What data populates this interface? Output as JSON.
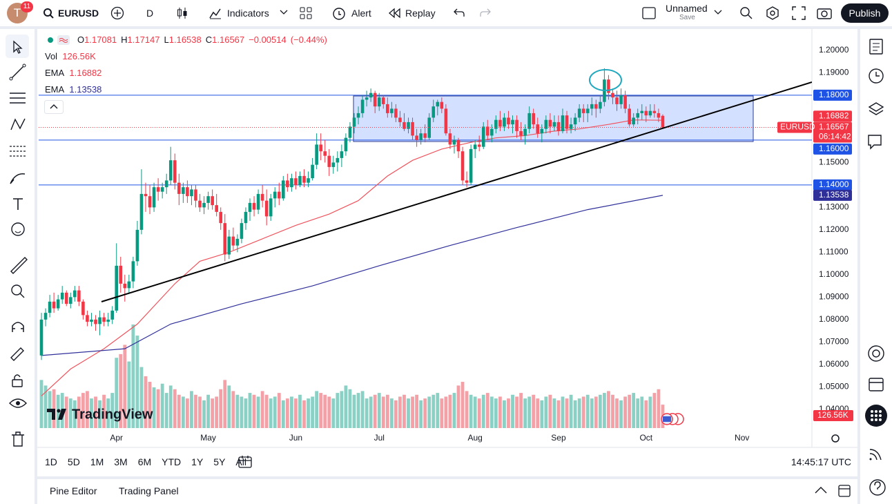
{
  "toolbar": {
    "avatar": "T",
    "badge": "11",
    "symbol": "EURUSD",
    "interval": "D",
    "indicators": "Indicators",
    "alert": "Alert",
    "replay": "Replay",
    "layout_name": "Unnamed",
    "save": "Save",
    "publish": "Publish"
  },
  "legend": {
    "ohlc_labels": [
      "O",
      "H",
      "L",
      "C"
    ],
    "change": {
      "value": -0.00514,
      "label": "−0.00514"
    },
    "change_pct": {
      "value": -0.44,
      "label": "(−0.44%)"
    }
  },
  "chart": {
    "type": "candlestick",
    "symbol_label": "EURUSD",
    "countdown": "06:14:42",
    "up_color": "#089981",
    "down_color": "#f23645",
    "ylim": [
      1.0298,
      1.2089
    ],
    "yticks": [
      {
        "value": 1.2,
        "label": "1.20000"
      },
      {
        "value": 1.19,
        "label": "1.19000"
      },
      {
        "value": 1.18,
        "label": "1.18000"
      },
      {
        "value": 1.17,
        "label": "1.17000"
      },
      {
        "value": 1.16,
        "label": "1.16000"
      },
      {
        "value": 1.15,
        "label": "1.15000"
      },
      {
        "value": 1.14,
        "label": "1.14000"
      },
      {
        "value": 1.13,
        "label": "1.13000"
      },
      {
        "value": 1.12,
        "label": "1.12000"
      },
      {
        "value": 1.11,
        "label": "1.11000"
      },
      {
        "value": 1.1,
        "label": "1.10000"
      },
      {
        "value": 1.09,
        "label": "1.09000"
      },
      {
        "value": 1.08,
        "label": "1.08000"
      },
      {
        "value": 1.07,
        "label": "1.07000"
      },
      {
        "value": 1.06,
        "label": "1.06000"
      },
      {
        "value": 1.05,
        "label": "1.05000"
      },
      {
        "value": 1.04,
        "label": "1.04000"
      }
    ],
    "xticks": [
      {
        "value": 18,
        "label": "Apr"
      },
      {
        "value": 40,
        "label": "May"
      },
      {
        "value": 61,
        "label": "Jun"
      },
      {
        "value": 81,
        "label": "Jul"
      },
      {
        "value": 104,
        "label": "Aug"
      },
      {
        "value": 124,
        "label": "Sep"
      },
      {
        "value": 145,
        "label": "Oct"
      },
      {
        "value": 168,
        "label": "Nov"
      }
    ],
    "grid": false,
    "candles": [
      [
        1.064,
        1.083,
        1.062,
        1.08
      ],
      [
        1.08,
        1.085,
        1.077,
        1.083
      ],
      [
        1.083,
        1.091,
        1.081,
        1.088
      ],
      [
        1.088,
        1.092,
        1.083,
        1.085
      ],
      [
        1.085,
        1.091,
        1.084,
        1.089
      ],
      [
        1.089,
        1.095,
        1.087,
        1.092
      ],
      [
        1.092,
        1.093,
        1.086,
        1.087
      ],
      [
        1.087,
        1.092,
        1.085,
        1.09
      ],
      [
        1.09,
        1.095,
        1.088,
        1.093
      ],
      [
        1.093,
        1.095,
        1.086,
        1.088
      ],
      [
        1.088,
        1.089,
        1.08,
        1.082
      ],
      [
        1.082,
        1.084,
        1.077,
        1.079
      ],
      [
        1.079,
        1.083,
        1.077,
        1.08
      ],
      [
        1.08,
        1.082,
        1.075,
        1.078
      ],
      [
        1.078,
        1.084,
        1.073,
        1.081
      ],
      [
        1.081,
        1.083,
        1.077,
        1.079
      ],
      [
        1.079,
        1.083,
        1.077,
        1.08
      ],
      [
        1.08,
        1.086,
        1.078,
        1.084
      ],
      [
        1.084,
        1.114,
        1.083,
        1.104
      ],
      [
        1.104,
        1.108,
        1.092,
        1.096
      ],
      [
        1.096,
        1.1,
        1.088,
        1.094
      ],
      [
        1.094,
        1.1,
        1.092,
        1.097
      ],
      [
        1.097,
        1.108,
        1.094,
        1.106
      ],
      [
        1.106,
        1.124,
        1.104,
        1.12
      ],
      [
        1.12,
        1.147,
        1.118,
        1.136
      ],
      [
        1.136,
        1.141,
        1.128,
        1.135
      ],
      [
        1.135,
        1.14,
        1.127,
        1.13
      ],
      [
        1.13,
        1.141,
        1.128,
        1.139
      ],
      [
        1.139,
        1.143,
        1.133,
        1.137
      ],
      [
        1.137,
        1.141,
        1.134,
        1.139
      ],
      [
        1.139,
        1.145,
        1.136,
        1.142
      ],
      [
        1.142,
        1.157,
        1.14,
        1.151
      ],
      [
        1.151,
        1.154,
        1.138,
        1.141
      ],
      [
        1.141,
        1.145,
        1.131,
        1.136
      ],
      [
        1.136,
        1.141,
        1.132,
        1.139
      ],
      [
        1.139,
        1.142,
        1.132,
        1.135
      ],
      [
        1.135,
        1.14,
        1.131,
        1.138
      ],
      [
        1.138,
        1.14,
        1.13,
        1.133
      ],
      [
        1.133,
        1.136,
        1.128,
        1.13
      ],
      [
        1.13,
        1.135,
        1.127,
        1.132
      ],
      [
        1.132,
        1.137,
        1.129,
        1.135
      ],
      [
        1.135,
        1.138,
        1.129,
        1.131
      ],
      [
        1.131,
        1.136,
        1.126,
        1.128
      ],
      [
        1.128,
        1.13,
        1.12,
        1.123
      ],
      [
        1.123,
        1.127,
        1.106,
        1.109
      ],
      [
        1.109,
        1.12,
        1.107,
        1.117
      ],
      [
        1.117,
        1.121,
        1.111,
        1.113
      ],
      [
        1.113,
        1.118,
        1.11,
        1.116
      ],
      [
        1.116,
        1.125,
        1.114,
        1.123
      ],
      [
        1.123,
        1.13,
        1.12,
        1.128
      ],
      [
        1.128,
        1.134,
        1.124,
        1.132
      ],
      [
        1.132,
        1.135,
        1.126,
        1.129
      ],
      [
        1.129,
        1.138,
        1.127,
        1.136
      ],
      [
        1.136,
        1.14,
        1.13,
        1.133
      ],
      [
        1.133,
        1.138,
        1.122,
        1.126
      ],
      [
        1.126,
        1.136,
        1.124,
        1.134
      ],
      [
        1.134,
        1.139,
        1.13,
        1.137
      ],
      [
        1.137,
        1.141,
        1.131,
        1.134
      ],
      [
        1.134,
        1.144,
        1.133,
        1.142
      ],
      [
        1.142,
        1.145,
        1.137,
        1.139
      ],
      [
        1.139,
        1.145,
        1.137,
        1.143
      ],
      [
        1.143,
        1.146,
        1.138,
        1.14
      ],
      [
        1.14,
        1.146,
        1.139,
        1.144
      ],
      [
        1.144,
        1.147,
        1.139,
        1.141
      ],
      [
        1.141,
        1.146,
        1.139,
        1.143
      ],
      [
        1.143,
        1.152,
        1.142,
        1.149
      ],
      [
        1.149,
        1.163,
        1.147,
        1.158
      ],
      [
        1.158,
        1.163,
        1.151,
        1.155
      ],
      [
        1.155,
        1.16,
        1.15,
        1.153
      ],
      [
        1.153,
        1.156,
        1.144,
        1.148
      ],
      [
        1.148,
        1.153,
        1.145,
        1.15
      ],
      [
        1.15,
        1.155,
        1.146,
        1.152
      ],
      [
        1.152,
        1.158,
        1.148,
        1.155
      ],
      [
        1.155,
        1.163,
        1.153,
        1.161
      ],
      [
        1.161,
        1.168,
        1.159,
        1.166
      ],
      [
        1.166,
        1.172,
        1.163,
        1.17
      ],
      [
        1.17,
        1.175,
        1.167,
        1.172
      ],
      [
        1.172,
        1.18,
        1.17,
        1.178
      ],
      [
        1.178,
        1.182,
        1.175,
        1.179
      ],
      [
        1.179,
        1.183,
        1.177,
        1.181
      ],
      [
        1.181,
        1.182,
        1.172,
        1.175
      ],
      [
        1.175,
        1.181,
        1.173,
        1.179
      ],
      [
        1.179,
        1.18,
        1.174,
        1.176
      ],
      [
        1.176,
        1.179,
        1.17,
        1.172
      ],
      [
        1.172,
        1.177,
        1.17,
        1.174
      ],
      [
        1.174,
        1.176,
        1.168,
        1.17
      ],
      [
        1.17,
        1.173,
        1.166,
        1.168
      ],
      [
        1.168,
        1.172,
        1.164,
        1.165
      ],
      [
        1.165,
        1.17,
        1.163,
        1.168
      ],
      [
        1.168,
        1.17,
        1.16,
        1.162
      ],
      [
        1.162,
        1.165,
        1.157,
        1.16
      ],
      [
        1.16,
        1.165,
        1.158,
        1.163
      ],
      [
        1.163,
        1.167,
        1.159,
        1.161
      ],
      [
        1.161,
        1.172,
        1.16,
        1.17
      ],
      [
        1.17,
        1.178,
        1.168,
        1.175
      ],
      [
        1.175,
        1.178,
        1.171,
        1.177
      ],
      [
        1.177,
        1.179,
        1.172,
        1.174
      ],
      [
        1.174,
        1.176,
        1.162,
        1.163
      ],
      [
        1.163,
        1.165,
        1.156,
        1.158
      ],
      [
        1.158,
        1.162,
        1.154,
        1.16
      ],
      [
        1.16,
        1.161,
        1.152,
        1.155
      ],
      [
        1.155,
        1.157,
        1.14,
        1.142
      ],
      [
        1.142,
        1.146,
        1.139,
        1.141
      ],
      [
        1.141,
        1.158,
        1.14,
        1.156
      ],
      [
        1.156,
        1.16,
        1.152,
        1.158
      ],
      [
        1.158,
        1.162,
        1.155,
        1.157
      ],
      [
        1.157,
        1.168,
        1.156,
        1.166
      ],
      [
        1.166,
        1.169,
        1.16,
        1.162
      ],
      [
        1.162,
        1.167,
        1.159,
        1.165
      ],
      [
        1.165,
        1.171,
        1.163,
        1.169
      ],
      [
        1.169,
        1.173,
        1.164,
        1.166
      ],
      [
        1.166,
        1.172,
        1.164,
        1.17
      ],
      [
        1.17,
        1.173,
        1.165,
        1.167
      ],
      [
        1.167,
        1.171,
        1.163,
        1.169
      ],
      [
        1.169,
        1.171,
        1.161,
        1.164
      ],
      [
        1.164,
        1.168,
        1.16,
        1.162
      ],
      [
        1.162,
        1.167,
        1.158,
        1.165
      ],
      [
        1.165,
        1.175,
        1.163,
        1.172
      ],
      [
        1.172,
        1.174,
        1.165,
        1.167
      ],
      [
        1.167,
        1.17,
        1.161,
        1.163
      ],
      [
        1.163,
        1.167,
        1.159,
        1.165
      ],
      [
        1.165,
        1.171,
        1.163,
        1.169
      ],
      [
        1.169,
        1.172,
        1.163,
        1.166
      ],
      [
        1.166,
        1.171,
        1.164,
        1.168
      ],
      [
        1.168,
        1.171,
        1.162,
        1.164
      ],
      [
        1.164,
        1.174,
        1.163,
        1.171
      ],
      [
        1.171,
        1.173,
        1.163,
        1.165
      ],
      [
        1.165,
        1.17,
        1.163,
        1.167
      ],
      [
        1.167,
        1.172,
        1.164,
        1.17
      ],
      [
        1.17,
        1.176,
        1.168,
        1.174
      ],
      [
        1.174,
        1.176,
        1.168,
        1.172
      ],
      [
        1.172,
        1.176,
        1.168,
        1.174
      ],
      [
        1.174,
        1.179,
        1.171,
        1.176
      ],
      [
        1.176,
        1.178,
        1.17,
        1.174
      ],
      [
        1.174,
        1.18,
        1.172,
        1.177
      ],
      [
        1.177,
        1.192,
        1.175,
        1.187
      ],
      [
        1.187,
        1.189,
        1.178,
        1.181
      ],
      [
        1.181,
        1.183,
        1.176,
        1.179
      ],
      [
        1.179,
        1.182,
        1.173,
        1.176
      ],
      [
        1.176,
        1.183,
        1.174,
        1.18
      ],
      [
        1.18,
        1.182,
        1.172,
        1.174
      ],
      [
        1.174,
        1.176,
        1.166,
        1.167
      ],
      [
        1.167,
        1.172,
        1.166,
        1.17
      ],
      [
        1.17,
        1.174,
        1.167,
        1.172
      ],
      [
        1.172,
        1.176,
        1.169,
        1.173
      ],
      [
        1.173,
        1.175,
        1.168,
        1.171
      ],
      [
        1.171,
        1.176,
        1.17,
        1.173
      ],
      [
        1.173,
        1.176,
        1.17,
        1.172
      ],
      [
        1.172,
        1.174,
        1.168,
        1.17
      ],
      [
        1.17081,
        1.17147,
        1.16538,
        1.16567
      ]
    ],
    "volume": {
      "name": "Vol",
      "up_color": "#8ad0c4",
      "down_color": "#f3a1a7",
      "vlim": [
        0,
        560
      ],
      "last_label": "126.56K",
      "values": [
        260,
        230,
        200,
        210,
        180,
        190,
        170,
        160,
        150,
        170,
        190,
        200,
        160,
        170,
        150,
        180,
        160,
        190,
        380,
        400,
        450,
        360,
        560,
        500,
        330,
        280,
        250,
        220,
        210,
        240,
        190,
        230,
        210,
        180,
        170,
        160,
        200,
        180,
        170,
        150,
        180,
        160,
        170,
        210,
        260,
        230,
        200,
        180,
        170,
        160,
        190,
        180,
        170,
        200,
        180,
        160,
        170,
        190,
        150,
        160,
        170,
        160,
        180,
        150,
        160,
        170,
        200,
        190,
        180,
        170,
        160,
        190,
        200,
        230,
        210,
        180,
        190,
        200,
        160,
        170,
        180,
        190,
        170,
        180,
        160,
        150,
        170,
        180,
        160,
        170,
        180,
        150,
        160,
        170,
        180,
        190,
        160,
        170,
        180,
        190,
        230,
        250,
        200,
        180,
        170,
        160,
        180,
        190,
        170,
        160,
        170,
        150,
        160,
        180,
        170,
        190,
        160,
        170,
        180,
        160,
        150,
        170,
        180,
        160,
        150,
        170,
        160,
        180,
        150,
        160,
        170,
        180,
        160,
        170,
        180,
        190,
        200,
        180,
        160,
        150,
        170,
        180,
        190,
        160,
        170,
        150,
        170,
        190,
        210,
        126.56
      ]
    },
    "ema": [
      {
        "name": "EMA",
        "color": "#f0535d",
        "x": [
          0,
          7,
          15,
          23,
          32,
          38,
          45,
          53,
          61,
          69,
          76,
          83,
          89,
          96,
          103,
          109,
          116,
          123,
          129,
          136,
          142,
          149
        ],
        "values": [
          1.046,
          1.058,
          1.067,
          1.078,
          1.096,
          1.106,
          1.11,
          1.116,
          1.122,
          1.127,
          1.133,
          1.144,
          1.151,
          1.156,
          1.159,
          1.161,
          1.162,
          1.164,
          1.165,
          1.167,
          1.169,
          1.16882
        ]
      },
      {
        "name": "EMA",
        "color": "#2f2f9a",
        "x": [
          0,
          20,
          31,
          48,
          65,
          81,
          98,
          114,
          131,
          149
        ],
        "values": [
          1.064,
          1.067,
          1.078,
          1.087,
          1.095,
          1.104,
          1.113,
          1.121,
          1.129,
          1.13538
        ]
      }
    ],
    "hlines": [
      {
        "value": 1.18,
        "label": "1.18000"
      },
      {
        "value": 1.16,
        "label": "1.16000"
      },
      {
        "value": 1.14,
        "label": "1.14000"
      }
    ],
    "hline_color": "#1e53e5"
  },
  "logo": "TradingView",
  "ranges": [
    "1D",
    "5D",
    "1M",
    "3M",
    "6M",
    "YTD",
    "1Y",
    "5Y",
    "All"
  ],
  "clock": "14:45:17 UTC",
  "footer": [
    "Pine Editor",
    "Trading Panel"
  ]
}
